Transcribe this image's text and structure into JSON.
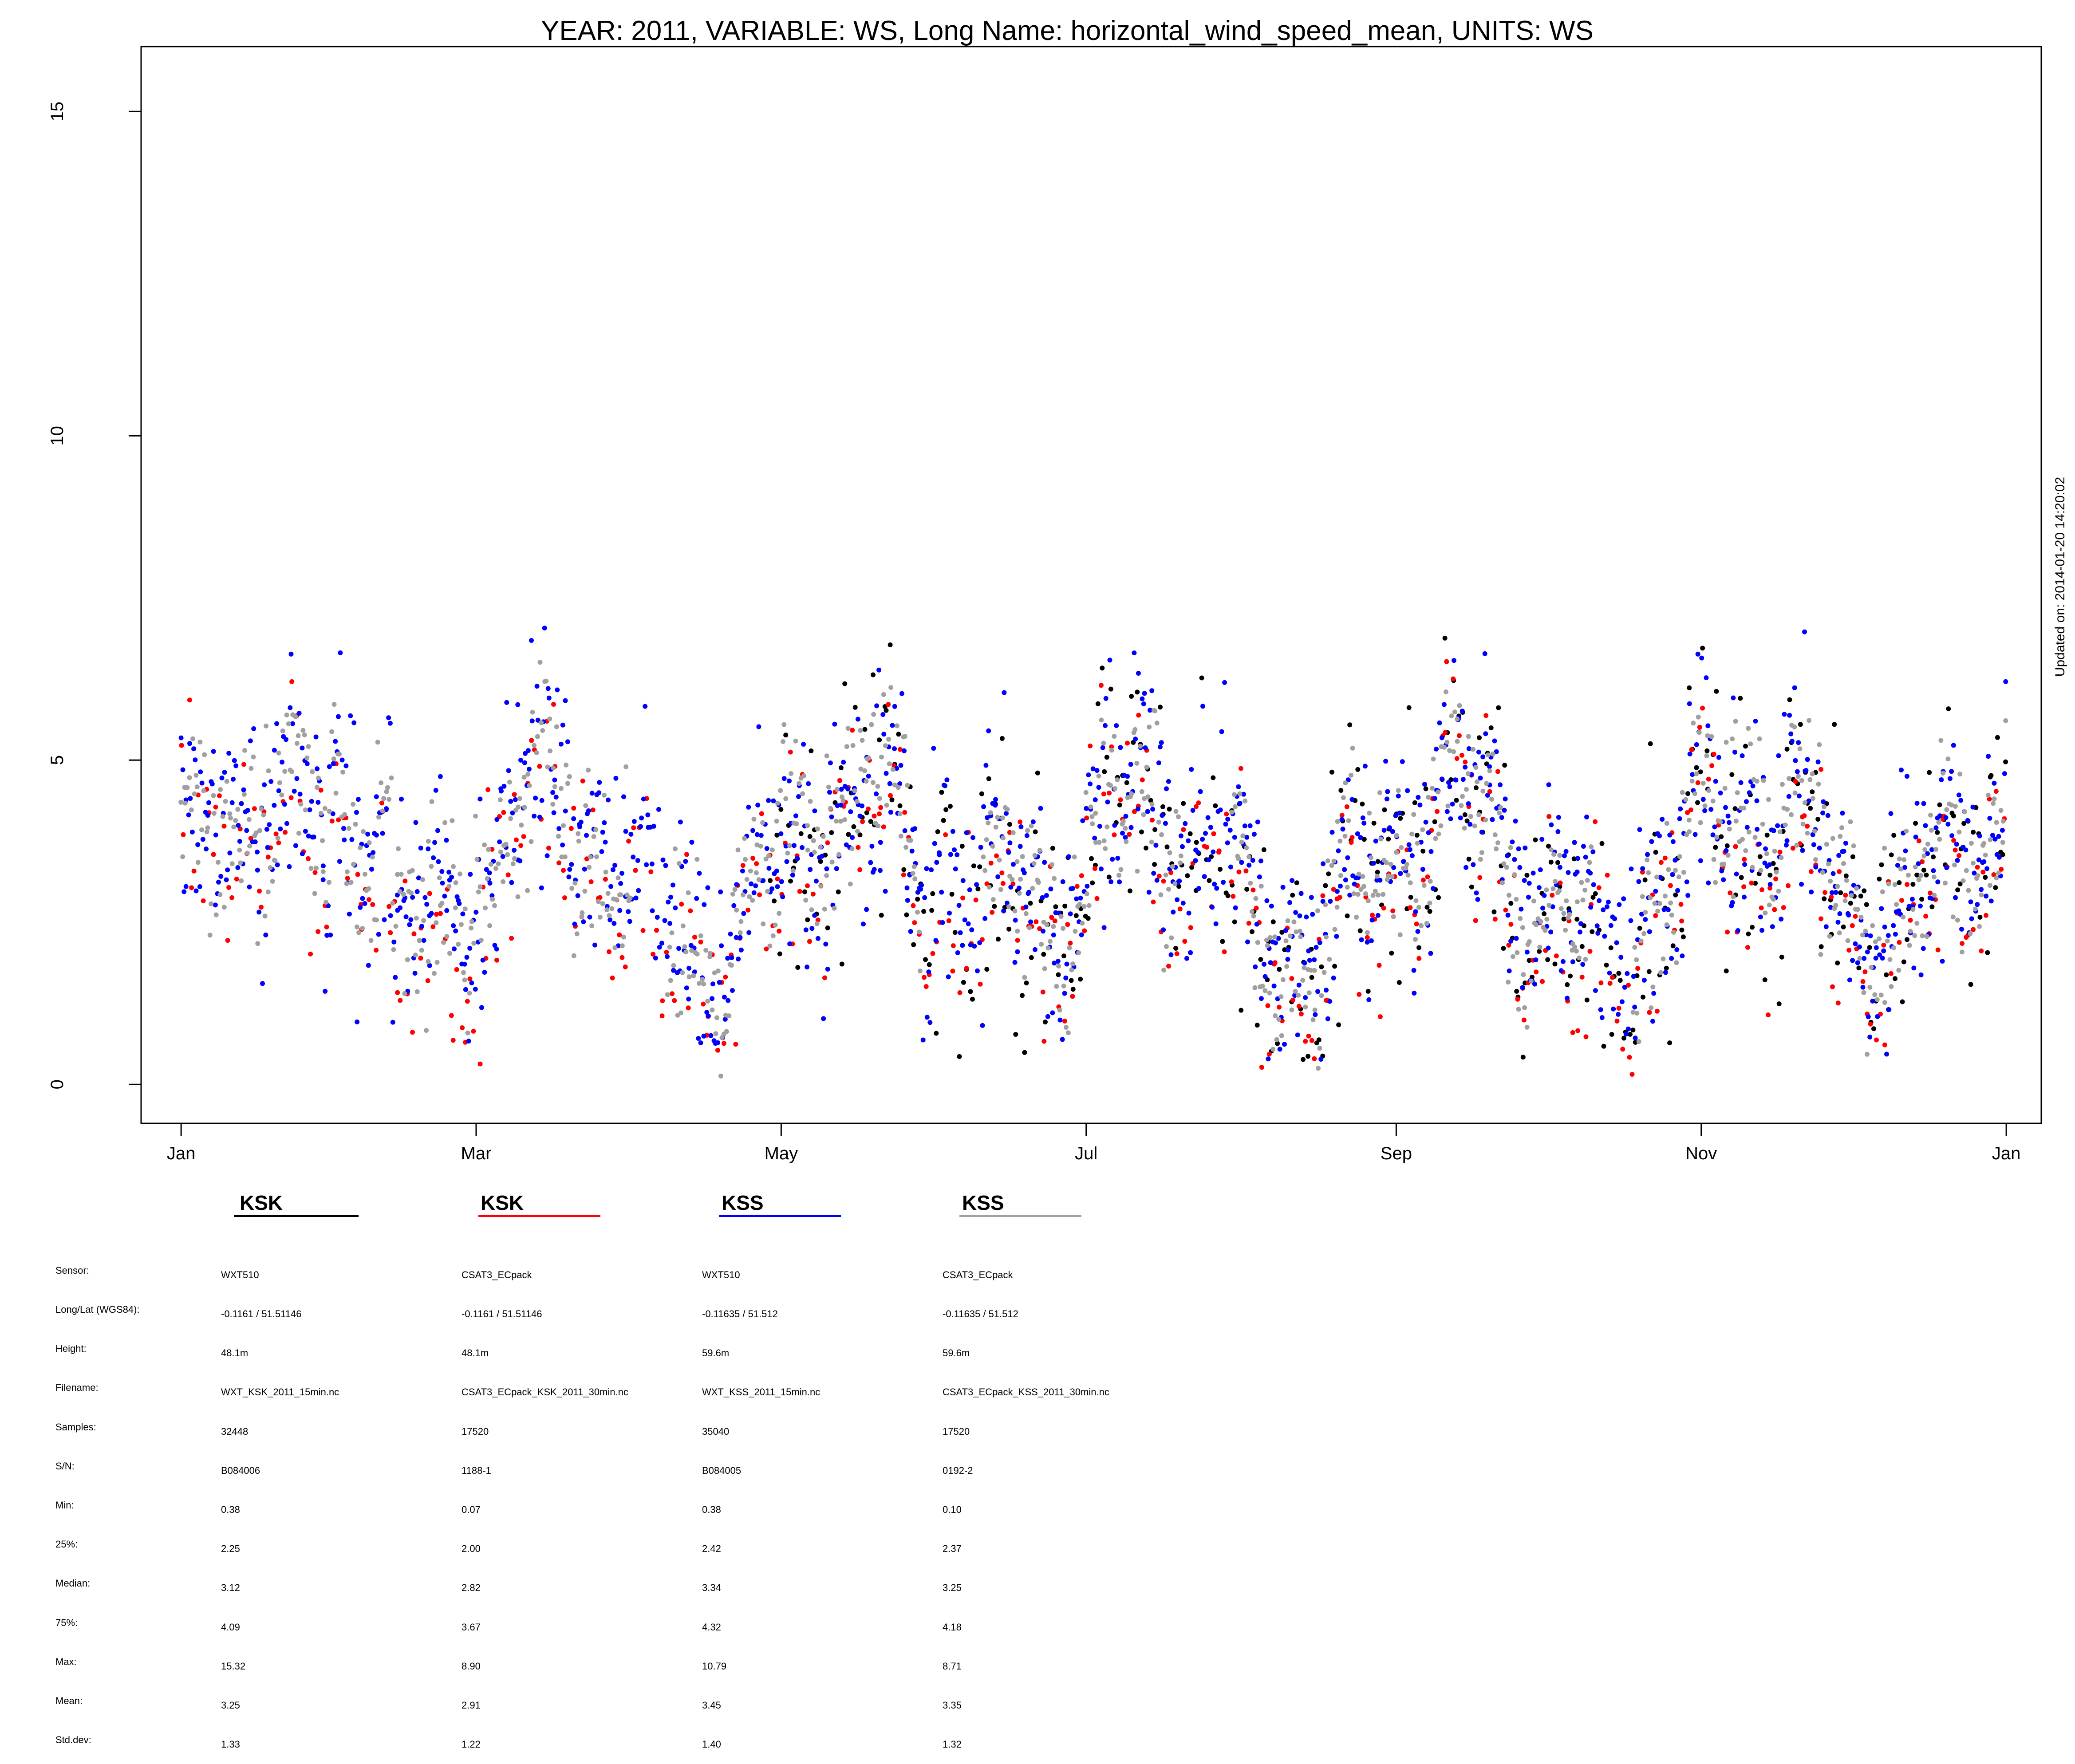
{
  "chart_data": {
    "type": "scatter",
    "title": "YEAR: 2011, VARIABLE: WS, Long Name: horizontal_wind_speed_mean, UNITS: WS",
    "xlabel": "",
    "ylabel": "",
    "x_ticks": [
      "Jan",
      "Mar",
      "May",
      "Jul",
      "Sep",
      "Nov",
      "Jan"
    ],
    "x_tick_days": [
      0,
      59,
      120,
      181,
      243,
      304,
      365
    ],
    "xlim_days": [
      -8,
      372
    ],
    "y_ticks": [
      "0",
      "5",
      "10",
      "15"
    ],
    "y_tick_values": [
      0,
      5,
      10,
      15
    ],
    "ylim": [
      -0.6,
      16.0
    ],
    "grid": false,
    "side_note": "Updated on: 2014-01-20 14:20:02",
    "series": [
      {
        "name": "KSK",
        "color": "#000000",
        "sensor": "WXT510",
        "longlat": "-0.1161 / 51.51146",
        "height": "48.1m",
        "filename": "WXT_KSK_2011_15min.nc",
        "samples": "32448",
        "sn": "B084006",
        "min": "0.38",
        "q25": "2.25",
        "median": "3.12",
        "q75": "4.09",
        "max": "15.32",
        "mean": "3.25",
        "sd": "1.33"
      },
      {
        "name": "KSK",
        "color": "#ff0000",
        "sensor": "CSAT3_ECpack",
        "longlat": "-0.1161 / 51.51146",
        "height": "48.1m",
        "filename": "CSAT3_ECpack_KSK_2011_30min.nc",
        "samples": "17520",
        "sn": "1188-1",
        "min": "0.07",
        "q25": "2.00",
        "median": "2.82",
        "q75": "3.67",
        "max": "8.90",
        "mean": "2.91",
        "sd": "1.22"
      },
      {
        "name": "KSS",
        "color": "#0000ff",
        "sensor": "WXT510",
        "longlat": "-0.11635 / 51.512",
        "height": "59.6m",
        "filename": "WXT_KSS_2011_15min.nc",
        "samples": "35040",
        "sn": "B084005",
        "min": "0.38",
        "q25": "2.42",
        "median": "3.34",
        "q75": "4.32",
        "max": "10.79",
        "mean": "3.45",
        "sd": "1.40"
      },
      {
        "name": "KSS",
        "color": "#a0a0a0",
        "sensor": "CSAT3_ECpack",
        "longlat": "-0.11635 / 51.512",
        "height": "59.6m",
        "filename": "CSAT3_ECpack_KSS_2011_30min.nc",
        "samples": "17520",
        "sn": "0192-2",
        "min": "0.10",
        "q25": "2.37",
        "median": "3.25",
        "q75": "4.18",
        "max": "8.71",
        "mean": "3.35",
        "sd": "1.32"
      }
    ],
    "table_labels": [
      "Sensor:",
      "Long/Lat (WGS84):",
      "Height:",
      "Filename:",
      "Samples:",
      "S/N:",
      "Min:",
      "25%:",
      "Median:",
      "75%:",
      "Max:",
      "Mean:",
      "Std.dev:"
    ]
  }
}
